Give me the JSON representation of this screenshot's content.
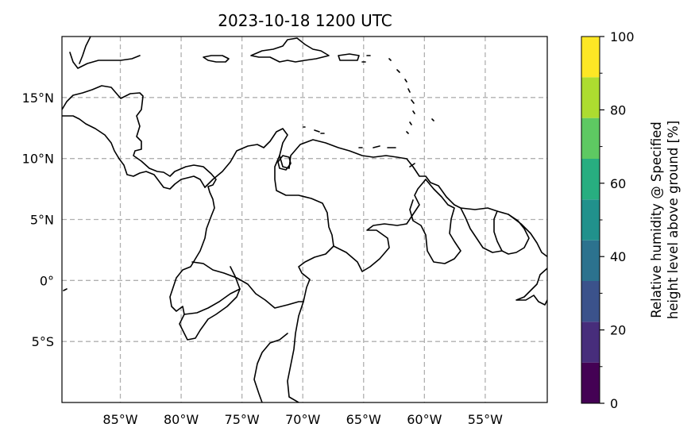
{
  "title": "2023-10-18 1200 UTC",
  "map": {
    "lon_range": [
      -89.8,
      -49.9
    ],
    "lat_range": [
      -10,
      20
    ],
    "grid_lon": [
      -85,
      -80,
      -75,
      -70,
      -65,
      -60,
      -55
    ],
    "grid_lat": [
      15,
      10,
      5,
      0,
      -5
    ],
    "lon_labels": [
      "85°W",
      "80°W",
      "75°W",
      "70°W",
      "65°W",
      "60°W",
      "55°W"
    ],
    "lat_labels": [
      "15°N",
      "10°N",
      "5°N",
      "0°",
      "5°S"
    ],
    "gridlines": true
  },
  "colorbar": {
    "label_line1": "Relative humidity @ Specified",
    "label_line2": "height level above ground [%]",
    "range": [
      0,
      100
    ],
    "tick_values": [
      0,
      20,
      40,
      60,
      80,
      100
    ],
    "tick_labels": [
      "0",
      "20",
      "40",
      "60",
      "80",
      "100"
    ],
    "minor_ticks": [
      10,
      30,
      50,
      70,
      90
    ],
    "colors": [
      "#440154",
      "#472d7b",
      "#3b528b",
      "#2c728e",
      "#21918c",
      "#28ae80",
      "#5ec962",
      "#addc30",
      "#fde725"
    ]
  }
}
